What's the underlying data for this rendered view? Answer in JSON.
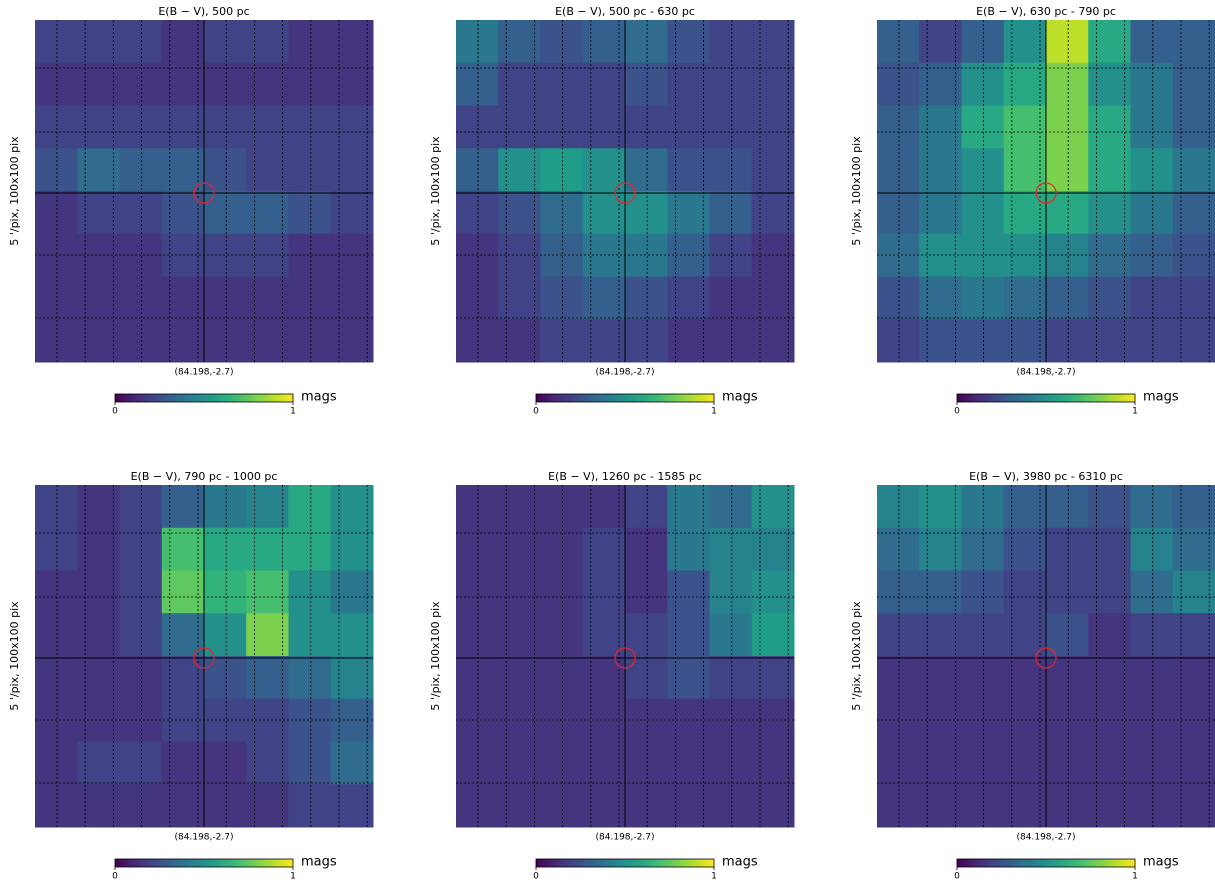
{
  "chart_data": [
    {
      "type": "heatmap",
      "title": "E(B − V), 500 pc",
      "xlabel": "(84.198,-2.7)",
      "ylabel": "5 '/pix,  100x100 pix",
      "colormap": "viridis",
      "clim": [
        0,
        1
      ],
      "cticks": [
        0,
        1
      ],
      "cbar_label": "mags",
      "values": [
        [
          0.2,
          0.2,
          0.2,
          0.15,
          0.2,
          0.2,
          0.15,
          0.15
        ],
        [
          0.15,
          0.15,
          0.15,
          0.15,
          0.15,
          0.15,
          0.15,
          0.15
        ],
        [
          0.2,
          0.2,
          0.2,
          0.2,
          0.2,
          0.2,
          0.2,
          0.2
        ],
        [
          0.25,
          0.35,
          0.3,
          0.3,
          0.25,
          0.2,
          0.2,
          0.2
        ],
        [
          0.15,
          0.2,
          0.2,
          0.25,
          0.3,
          0.3,
          0.25,
          0.2
        ],
        [
          0.15,
          0.15,
          0.15,
          0.2,
          0.2,
          0.2,
          0.15,
          0.15
        ],
        [
          0.15,
          0.15,
          0.15,
          0.15,
          0.15,
          0.15,
          0.15,
          0.15
        ],
        [
          0.15,
          0.15,
          0.15,
          0.15,
          0.15,
          0.15,
          0.15,
          0.15
        ]
      ]
    },
    {
      "type": "heatmap",
      "title": "E(B − V), 500 pc - 630 pc",
      "xlabel": "(84.198,-2.7)",
      "ylabel": "5 '/pix,  100x100 pix",
      "colormap": "viridis",
      "clim": [
        0,
        1
      ],
      "cticks": [
        0,
        1
      ],
      "cbar_label": "mags",
      "values": [
        [
          0.4,
          0.3,
          0.25,
          0.3,
          0.35,
          0.25,
          0.2,
          0.2
        ],
        [
          0.3,
          0.2,
          0.2,
          0.2,
          0.25,
          0.2,
          0.2,
          0.2
        ],
        [
          0.2,
          0.2,
          0.2,
          0.2,
          0.2,
          0.2,
          0.2,
          0.2
        ],
        [
          0.3,
          0.5,
          0.55,
          0.5,
          0.35,
          0.25,
          0.25,
          0.2
        ],
        [
          0.2,
          0.25,
          0.35,
          0.5,
          0.5,
          0.4,
          0.3,
          0.2
        ],
        [
          0.15,
          0.2,
          0.3,
          0.4,
          0.4,
          0.3,
          0.2,
          0.15
        ],
        [
          0.15,
          0.2,
          0.25,
          0.3,
          0.25,
          0.2,
          0.15,
          0.15
        ],
        [
          0.15,
          0.15,
          0.2,
          0.2,
          0.2,
          0.15,
          0.15,
          0.15
        ]
      ]
    },
    {
      "type": "heatmap",
      "title": "E(B − V), 630 pc - 790 pc",
      "xlabel": "(84.198,-2.7)",
      "ylabel": "5 '/pix,  100x100 pix",
      "colormap": "viridis",
      "clim": [
        0,
        1
      ],
      "cticks": [
        0,
        1
      ],
      "cbar_label": "mags",
      "values": [
        [
          0.3,
          0.2,
          0.3,
          0.5,
          0.9,
          0.6,
          0.3,
          0.3
        ],
        [
          0.25,
          0.3,
          0.5,
          0.6,
          0.8,
          0.5,
          0.4,
          0.3
        ],
        [
          0.3,
          0.4,
          0.6,
          0.7,
          0.8,
          0.6,
          0.4,
          0.3
        ],
        [
          0.3,
          0.4,
          0.5,
          0.7,
          0.8,
          0.6,
          0.5,
          0.4
        ],
        [
          0.3,
          0.4,
          0.5,
          0.6,
          0.6,
          0.5,
          0.4,
          0.3
        ],
        [
          0.35,
          0.5,
          0.5,
          0.5,
          0.45,
          0.35,
          0.3,
          0.25
        ],
        [
          0.25,
          0.35,
          0.4,
          0.35,
          0.3,
          0.25,
          0.2,
          0.2
        ],
        [
          0.2,
          0.25,
          0.25,
          0.25,
          0.2,
          0.2,
          0.2,
          0.2
        ]
      ]
    },
    {
      "type": "heatmap",
      "title": "E(B − V), 790 pc - 1000 pc",
      "xlabel": "(84.198,-2.7)",
      "ylabel": "5 '/pix,  100x100 pix",
      "colormap": "viridis",
      "clim": [
        0,
        1
      ],
      "cticks": [
        0,
        1
      ],
      "cbar_label": "mags",
      "values": [
        [
          0.2,
          0.15,
          0.2,
          0.3,
          0.4,
          0.45,
          0.6,
          0.5
        ],
        [
          0.2,
          0.15,
          0.2,
          0.7,
          0.6,
          0.6,
          0.6,
          0.5
        ],
        [
          0.15,
          0.15,
          0.2,
          0.75,
          0.65,
          0.7,
          0.5,
          0.4
        ],
        [
          0.15,
          0.15,
          0.2,
          0.35,
          0.5,
          0.8,
          0.5,
          0.5
        ],
        [
          0.15,
          0.15,
          0.15,
          0.2,
          0.25,
          0.3,
          0.35,
          0.45
        ],
        [
          0.15,
          0.15,
          0.15,
          0.2,
          0.2,
          0.2,
          0.25,
          0.3
        ],
        [
          0.15,
          0.2,
          0.2,
          0.15,
          0.15,
          0.2,
          0.25,
          0.35
        ],
        [
          0.15,
          0.15,
          0.15,
          0.15,
          0.15,
          0.15,
          0.2,
          0.2
        ]
      ]
    },
    {
      "type": "heatmap",
      "title": "E(B − V), 1260 pc - 1585 pc",
      "xlabel": "(84.198,-2.7)",
      "ylabel": "5 '/pix,  100x100 pix",
      "colormap": "viridis",
      "clim": [
        0,
        1
      ],
      "cticks": [
        0,
        1
      ],
      "cbar_label": "mags",
      "values": [
        [
          0.15,
          0.15,
          0.15,
          0.15,
          0.2,
          0.4,
          0.35,
          0.5
        ],
        [
          0.15,
          0.15,
          0.15,
          0.2,
          0.15,
          0.4,
          0.45,
          0.45
        ],
        [
          0.15,
          0.15,
          0.15,
          0.2,
          0.15,
          0.25,
          0.45,
          0.5
        ],
        [
          0.15,
          0.15,
          0.15,
          0.2,
          0.2,
          0.25,
          0.4,
          0.55
        ],
        [
          0.15,
          0.15,
          0.15,
          0.15,
          0.2,
          0.25,
          0.2,
          0.2
        ],
        [
          0.15,
          0.15,
          0.15,
          0.15,
          0.15,
          0.15,
          0.15,
          0.15
        ],
        [
          0.15,
          0.15,
          0.15,
          0.15,
          0.15,
          0.15,
          0.15,
          0.15
        ],
        [
          0.15,
          0.15,
          0.15,
          0.15,
          0.15,
          0.15,
          0.15,
          0.15
        ]
      ]
    },
    {
      "type": "heatmap",
      "title": "E(B − V), 3980 pc - 6310 pc",
      "xlabel": "(84.198,-2.7)",
      "ylabel": "5 '/pix,  100x100 pix",
      "colormap": "viridis",
      "clim": [
        0,
        1
      ],
      "cticks": [
        0,
        1
      ],
      "cbar_label": "mags",
      "values": [
        [
          0.45,
          0.5,
          0.4,
          0.3,
          0.3,
          0.25,
          0.35,
          0.3
        ],
        [
          0.35,
          0.45,
          0.35,
          0.25,
          0.2,
          0.2,
          0.45,
          0.35
        ],
        [
          0.3,
          0.3,
          0.25,
          0.2,
          0.2,
          0.2,
          0.35,
          0.45
        ],
        [
          0.2,
          0.2,
          0.2,
          0.2,
          0.25,
          0.15,
          0.2,
          0.2
        ],
        [
          0.15,
          0.15,
          0.15,
          0.15,
          0.15,
          0.15,
          0.15,
          0.15
        ],
        [
          0.15,
          0.15,
          0.15,
          0.15,
          0.15,
          0.15,
          0.15,
          0.15
        ],
        [
          0.15,
          0.15,
          0.15,
          0.15,
          0.15,
          0.15,
          0.15,
          0.15
        ],
        [
          0.15,
          0.15,
          0.15,
          0.15,
          0.15,
          0.15,
          0.15,
          0.15
        ]
      ]
    }
  ]
}
